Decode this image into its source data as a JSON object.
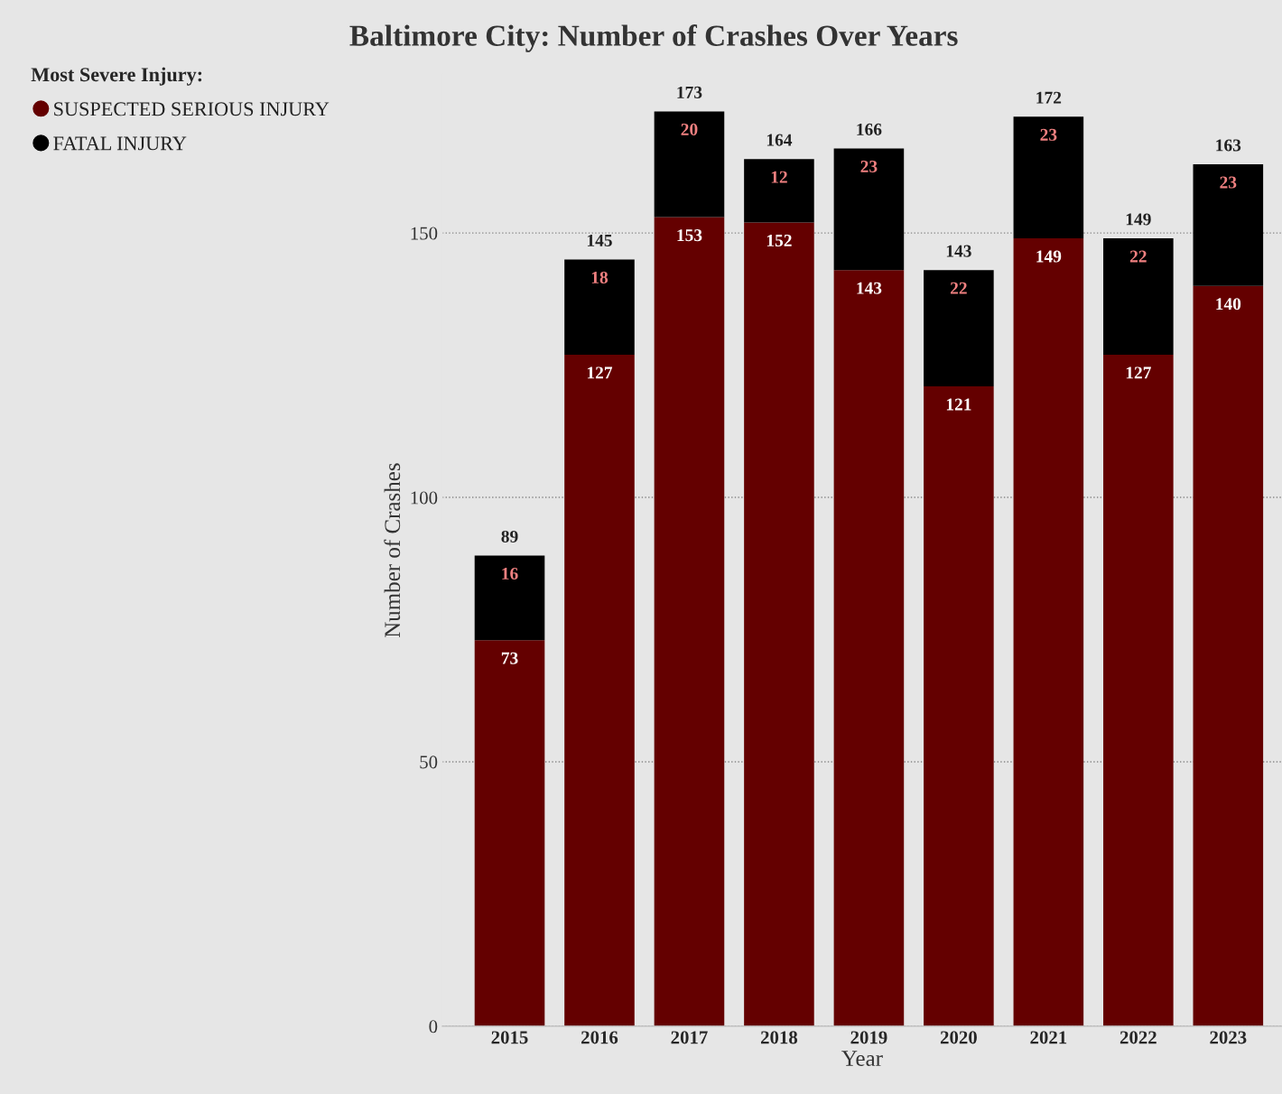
{
  "chart_data": {
    "type": "bar",
    "title": "Baltimore City: Number of Crashes Over Years",
    "xlabel": "Year",
    "ylabel": "Number of Crashes",
    "legend_title": "Most Severe Injury:",
    "categories": [
      "2015",
      "2016",
      "2017",
      "2018",
      "2019",
      "2020",
      "2021",
      "2022",
      "2023"
    ],
    "series": [
      {
        "name": "SUSPECTED SERIOUS INJURY",
        "color": "#640000",
        "values": [
          73,
          127,
          153,
          152,
          143,
          121,
          149,
          127,
          140
        ]
      },
      {
        "name": "FATAL INJURY",
        "color": "#000000",
        "values": [
          16,
          18,
          20,
          12,
          23,
          22,
          23,
          22,
          23
        ]
      }
    ],
    "stacked": true,
    "data_labels": true,
    "totals": [
      "89",
      "145",
      "173",
      "164",
      "166",
      "143",
      "172",
      "149",
      "163"
    ],
    "ylim": [
      0,
      180
    ],
    "yticks": [
      0,
      50,
      100,
      150
    ],
    "grid": "y",
    "legend": "top left"
  }
}
